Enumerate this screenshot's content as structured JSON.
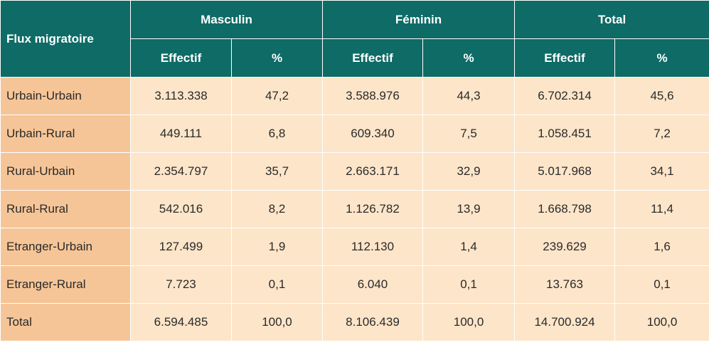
{
  "table": {
    "row_header": "Flux migratoire",
    "groups": [
      "Masculin",
      "Féminin",
      "Total"
    ],
    "subheaders": [
      "Effectif",
      "%",
      "Effectif",
      "%",
      "Effectif",
      "%"
    ],
    "rows": [
      {
        "label": "Urbain-Urbain",
        "cells": [
          "3.113.338",
          "47,2",
          "3.588.976",
          "44,3",
          "6.702.314",
          "45,6"
        ]
      },
      {
        "label": "Urbain-Rural",
        "cells": [
          "449.111",
          "6,8",
          "609.340",
          "7,5",
          "1.058.451",
          "7,2"
        ]
      },
      {
        "label": "Rural-Urbain",
        "cells": [
          "2.354.797",
          "35,7",
          "2.663.171",
          "32,9",
          "5.017.968",
          "34,1"
        ]
      },
      {
        "label": "Rural-Rural",
        "cells": [
          "542.016",
          "8,2",
          "1.126.782",
          "13,9",
          "1.668.798",
          "11,4"
        ]
      },
      {
        "label": "Etranger-Urbain",
        "cells": [
          "127.499",
          "1,9",
          "112.130",
          "1,4",
          "239.629",
          "1,6"
        ]
      },
      {
        "label": "Etranger-Rural",
        "cells": [
          "7.723",
          "0,1",
          "6.040",
          "0,1",
          "13.763",
          "0,1"
        ]
      },
      {
        "label": "Total",
        "cells": [
          "6.594.485",
          "100,0",
          "8.106.439",
          "100,0",
          "14.700.924",
          "100,0"
        ]
      }
    ]
  }
}
